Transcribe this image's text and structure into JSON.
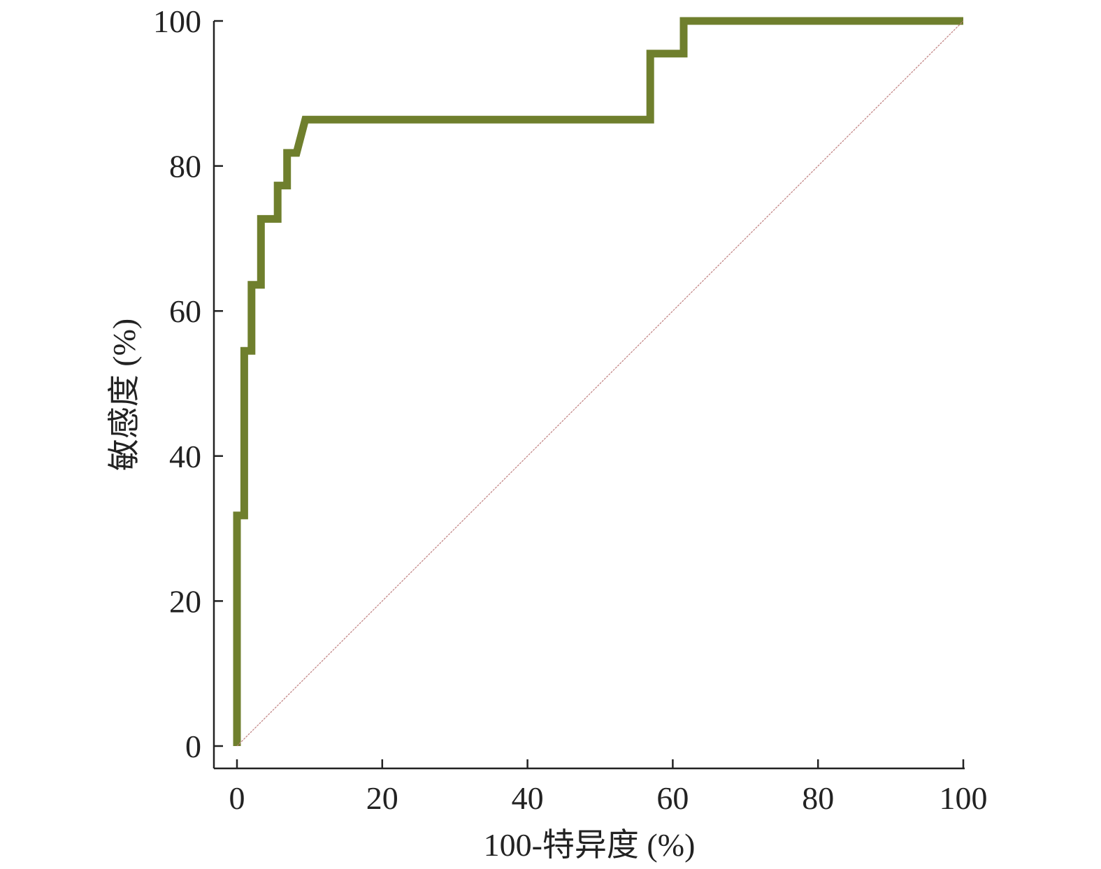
{
  "chart_data": {
    "type": "line",
    "xlabel": "100-特异度 (%)",
    "ylabel": "敏感度 (%)",
    "xlim": [
      0,
      100
    ],
    "ylim": [
      0,
      100
    ],
    "x_ticks": [
      0,
      20,
      40,
      60,
      80,
      100
    ],
    "y_ticks": [
      0,
      20,
      40,
      60,
      80,
      100
    ],
    "grid": false,
    "series": [
      {
        "role": "roc-curve",
        "color": "#6f7f2d",
        "x": [
          0,
          0,
          1,
          1,
          2,
          2,
          3.3,
          3.3,
          5.6,
          5.6,
          6.9,
          6.9,
          8.2,
          9.4,
          56.9,
          56.9,
          61.5,
          61.5,
          100
        ],
        "y": [
          0,
          31.8,
          31.8,
          54.5,
          54.5,
          63.6,
          63.6,
          72.7,
          72.7,
          77.3,
          77.3,
          81.8,
          81.8,
          86.4,
          86.4,
          95.5,
          95.5,
          100,
          100
        ]
      },
      {
        "role": "reference-line",
        "color": "#c08080",
        "x": [
          0,
          100
        ],
        "y": [
          0,
          100
        ]
      }
    ]
  }
}
